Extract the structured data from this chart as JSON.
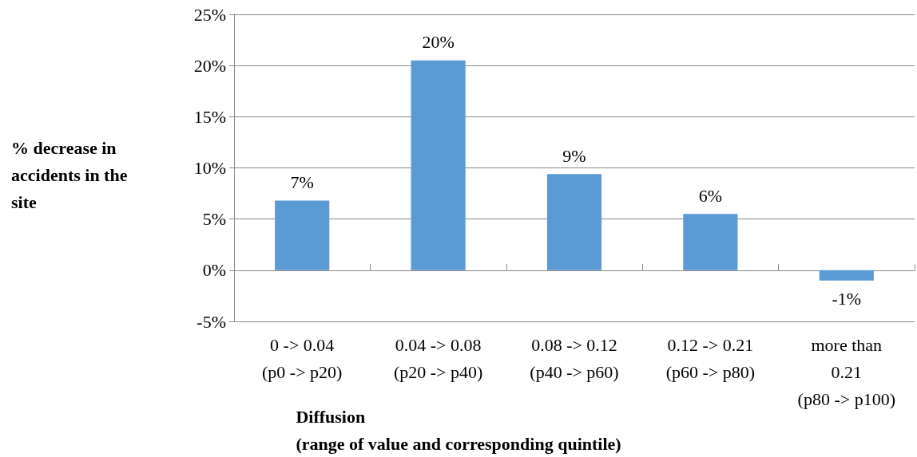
{
  "chart_data": {
    "type": "bar",
    "ylabel": "% decrease in\naccidents in the\nsite",
    "xlabel": "Diffusion\n(range of value and corresponding quintile)",
    "categories": [
      "0 -> 0.04\n(p0 -> p20)",
      "0.04 -> 0.08\n(p20 -> p40)",
      "0.08 -> 0.12\n(p40 -> p60)",
      "0.12 -> 0.21\n(p60 -> p80)",
      "more than\n0.21\n(p80 -> p100)"
    ],
    "values": [
      6.8,
      20.5,
      9.4,
      5.5,
      -1.0
    ],
    "value_labels": [
      "7%",
      "20%",
      "9%",
      "6%",
      "-1%"
    ],
    "color": "#5b9bd5",
    "ylim": [
      -5,
      25
    ],
    "yticks": [
      {
        "value": -5,
        "label": "-5%"
      },
      {
        "value": 0,
        "label": "0%"
      },
      {
        "value": 5,
        "label": "5%"
      },
      {
        "value": 10,
        "label": "10%"
      },
      {
        "value": 15,
        "label": "15%"
      },
      {
        "value": 20,
        "label": "20%"
      },
      {
        "value": 25,
        "label": "25%"
      }
    ],
    "grid": "y"
  }
}
